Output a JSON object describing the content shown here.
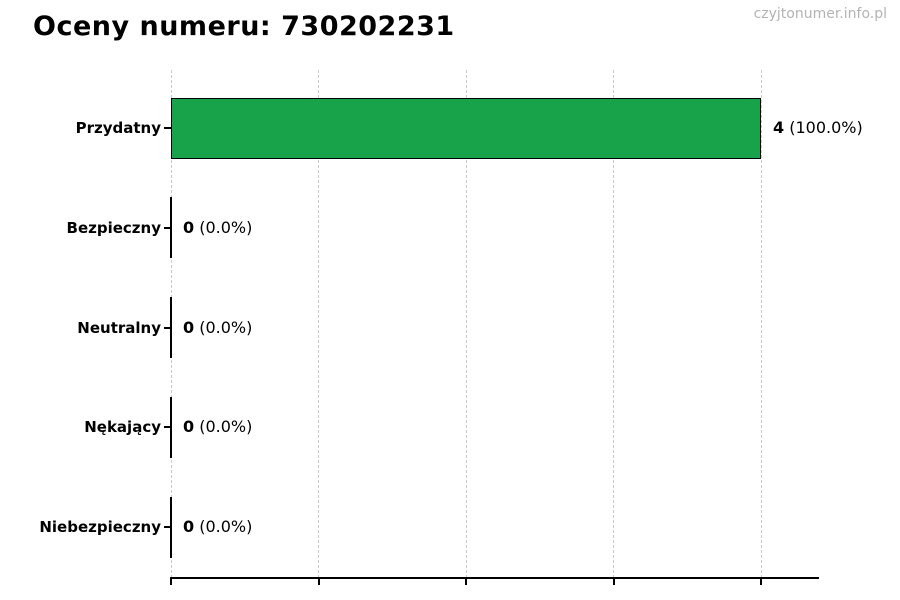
{
  "header": {
    "title": "Oceny numeru: 730202231",
    "watermark": "czyjtonumer.info.pl"
  },
  "colors": {
    "bar_fill": "#18a34a",
    "bar_edge": "#000000",
    "grid": "#c9c9c9",
    "axis": "#000000",
    "title_text": "#000000",
    "watermark_text": "#b3b3b3"
  },
  "chart_data": {
    "type": "bar",
    "orientation": "horizontal",
    "title": "Oceny numeru: 730202231",
    "categories": [
      "Przydatny",
      "Bezpieczny",
      "Neutralny",
      "Nękający",
      "Niebezpieczny"
    ],
    "values": [
      4,
      0,
      0,
      0,
      0
    ],
    "percentages": [
      "100.0%",
      "0.0%",
      "0.0%",
      "0.0%",
      "0.0%"
    ],
    "value_labels": [
      "4 (100.0%)",
      "0 (0.0%)",
      "0 (0.0%)",
      "0 (0.0%)",
      "0 (0.0%)"
    ],
    "xlabel": "",
    "ylabel": "",
    "xlim": [
      0,
      4.39
    ],
    "xticks": [
      0,
      1,
      2,
      3,
      4
    ],
    "xtick_labels_visible": false,
    "grid": "vertical-dashed",
    "legend": "none"
  }
}
